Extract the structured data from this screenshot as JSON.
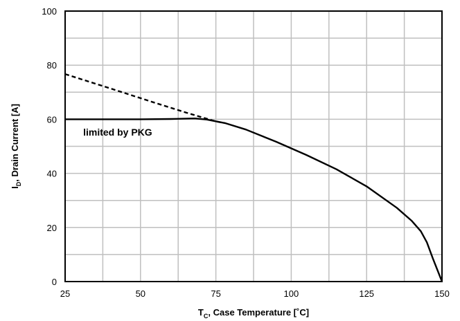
{
  "chart_data": {
    "type": "line",
    "title": "",
    "xlabel": {
      "main": "T",
      "sub": "C",
      "rest": ", Case Temperature [˚C]"
    },
    "ylabel": {
      "main": "I",
      "sub": "D",
      "rest": ", Drain Current [A]"
    },
    "xlim": [
      25,
      150
    ],
    "ylim": [
      0,
      100
    ],
    "x_ticks": [
      25,
      50,
      75,
      100,
      125,
      150
    ],
    "y_ticks": [
      0,
      20,
      40,
      60,
      80,
      100
    ],
    "x_grid_step": 12.5,
    "y_grid_step": 10,
    "grid": true,
    "annotation": {
      "text": "limited by PKG",
      "x": 31,
      "y": 54
    },
    "series": [
      {
        "style": "dashed",
        "x": [
          25,
          40,
          55,
          65,
          75,
          78
        ],
        "y": [
          76.7,
          71.4,
          66,
          62.5,
          59.2,
          58.6
        ]
      },
      {
        "style": "solid",
        "x": [
          25,
          50,
          60,
          68,
          72,
          78,
          85,
          95,
          105,
          115,
          125,
          135,
          140,
          143,
          145,
          147,
          150
        ],
        "y": [
          60,
          60,
          60.1,
          60.3,
          59.9,
          58.6,
          56.2,
          51.7,
          46.8,
          41.5,
          35.2,
          27.3,
          22.4,
          18.6,
          14.5,
          8.5,
          0
        ]
      }
    ]
  }
}
